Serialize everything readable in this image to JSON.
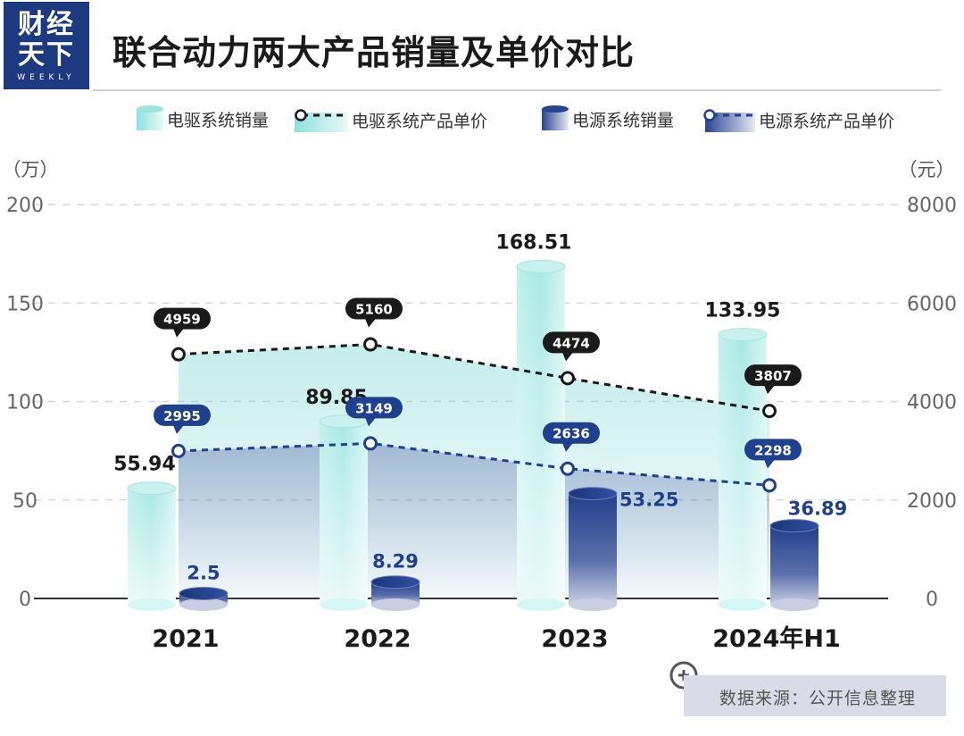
{
  "header": {
    "logo_line1": "财经",
    "logo_line2": "天下",
    "logo_sub": "WEEKLY",
    "title": "联合动力两大产品销量及单价对比"
  },
  "source": "数据来源：公开信息整理",
  "colors": {
    "teal": "#7fd8d4",
    "navy": "#1f3f8f",
    "line_black": "#1a1a1a",
    "line_navy": "#1f3f8f"
  },
  "chart_data": {
    "type": "bar",
    "categories": [
      "2021",
      "2022",
      "2023",
      "2024年H1"
    ],
    "series": [
      {
        "name": "电驱系统销量",
        "type": "bar",
        "axis": "left",
        "values": [
          55.94,
          89.85,
          168.51,
          133.95
        ],
        "labels": [
          "55.94",
          "89.85",
          "168.51",
          "133.95"
        ]
      },
      {
        "name": "电源系统销量",
        "type": "bar",
        "axis": "left",
        "values": [
          2.5,
          8.29,
          53.25,
          36.89
        ],
        "labels": [
          "2.5",
          "8.29",
          "53.25",
          "36.89"
        ]
      },
      {
        "name": "电驱系统产品单价",
        "type": "line",
        "axis": "right",
        "values": [
          4959,
          5160,
          4474,
          3807
        ],
        "labels": [
          "4959",
          "5160",
          "4474",
          "3807"
        ]
      },
      {
        "name": "电源系统产品单价",
        "type": "line",
        "axis": "right",
        "values": [
          2995,
          3149,
          2636,
          2298
        ],
        "labels": [
          "2995",
          "3149",
          "2636",
          "2298"
        ]
      }
    ],
    "left_axis": {
      "unit": "（万）",
      "ticks": [
        "0",
        "50",
        "100",
        "150",
        "200"
      ],
      "ylim": [
        0,
        200
      ]
    },
    "right_axis": {
      "unit": "（元）",
      "ticks": [
        "0",
        "2000",
        "4000",
        "6000",
        "8000"
      ],
      "ylim": [
        0,
        8000
      ]
    },
    "grid": true,
    "legend_placement": "top"
  }
}
